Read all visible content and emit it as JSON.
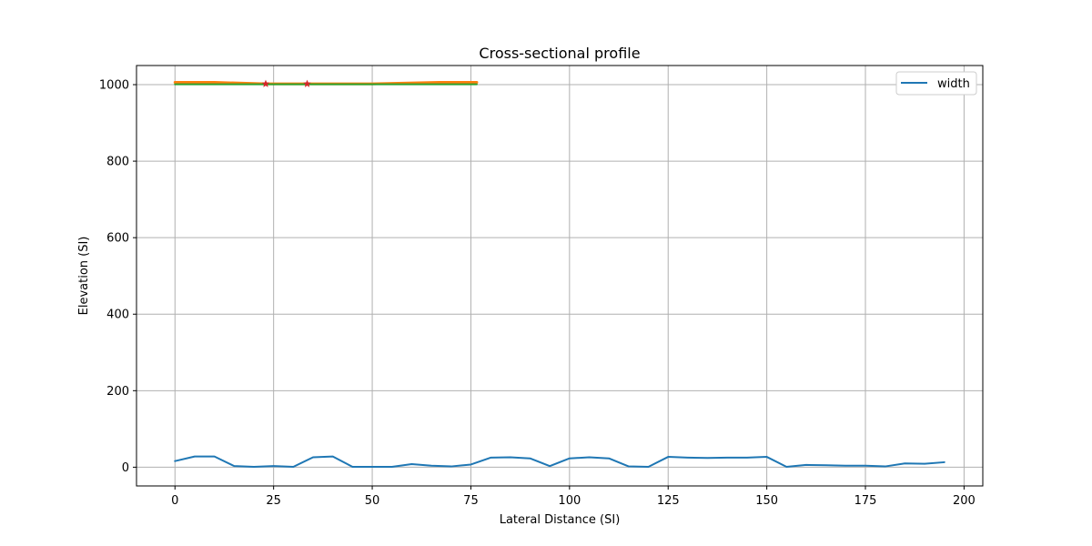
{
  "chart_data": {
    "type": "line",
    "title": "Cross-sectional profile",
    "xlabel": "Lateral Distance (SI)",
    "ylabel": "Elevation (SI)",
    "xlim": [
      -9.75,
      204.75
    ],
    "ylim": [
      -49,
      1050
    ],
    "xticks": [
      0,
      25,
      50,
      75,
      100,
      125,
      150,
      175,
      200
    ],
    "yticks": [
      0,
      200,
      400,
      600,
      800,
      1000
    ],
    "grid": true,
    "legend_position": "upper right",
    "series": [
      {
        "name": "width",
        "color": "#1f77b4",
        "in_legend": true,
        "x": [
          0,
          5,
          10,
          15,
          20,
          25,
          30,
          35,
          40,
          45,
          50,
          55,
          60,
          65,
          70,
          75,
          80,
          85,
          90,
          95,
          100,
          105,
          110,
          115,
          120,
          125,
          130,
          135,
          140,
          145,
          150,
          155,
          160,
          165,
          170,
          175,
          180,
          185,
          190,
          195
        ],
        "y": [
          16,
          28,
          28,
          3,
          1,
          3,
          1,
          26,
          28,
          1,
          1,
          1,
          8,
          4,
          2,
          7,
          25,
          26,
          23,
          3,
          23,
          26,
          23,
          2,
          1,
          27,
          25,
          24,
          25,
          25,
          27,
          1,
          6,
          5,
          4,
          4,
          2,
          10,
          9,
          13
        ]
      },
      {
        "color": "#ff7f0e",
        "in_legend": false,
        "line_width": 3,
        "x": [
          0,
          10,
          23,
          33.5,
          50,
          67,
          76.5
        ],
        "y": [
          1006,
          1006,
          1002,
          1002,
          1002,
          1006,
          1006
        ]
      },
      {
        "color": "#2ca02c",
        "in_legend": false,
        "x": [
          0,
          76.5
        ],
        "y": [
          1001,
          1001
        ]
      }
    ],
    "markers": {
      "color": "#d62728",
      "symbol": "star",
      "points": [
        {
          "x": 23,
          "y": 1002
        },
        {
          "x": 33.5,
          "y": 1002
        }
      ]
    }
  }
}
